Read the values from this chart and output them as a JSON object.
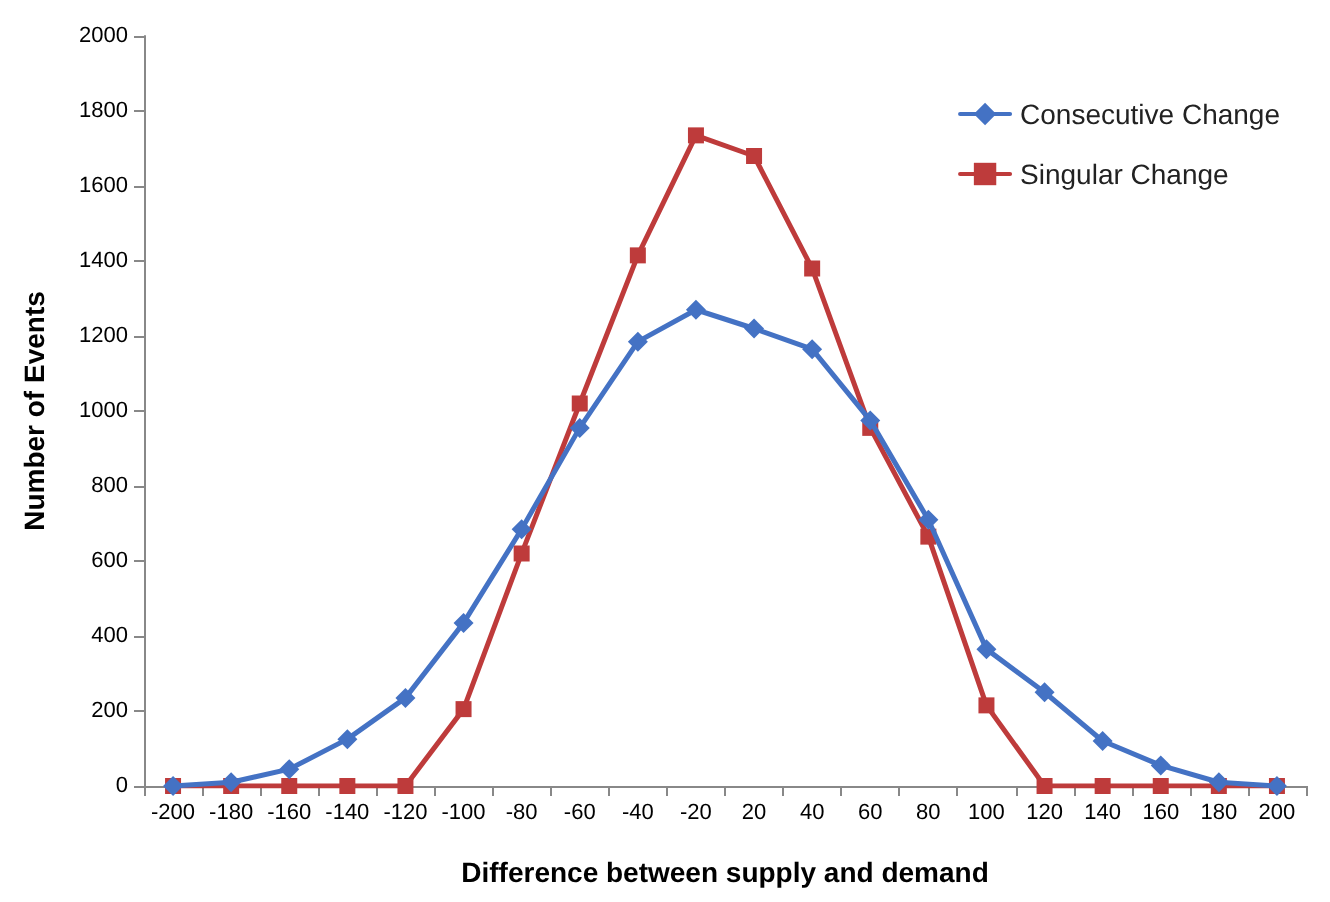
{
  "chart_data": {
    "type": "line",
    "xlabel": "Difference between supply and demand",
    "ylabel": "Number of Events",
    "categories": [
      "-200",
      "-180",
      "-160",
      "-140",
      "-120",
      "-100",
      "-80",
      "-60",
      "-40",
      "-20",
      "20",
      "40",
      "60",
      "80",
      "100",
      "120",
      "140",
      "160",
      "180",
      "200"
    ],
    "series": [
      {
        "name": "Consecutive Change",
        "color": "#4472c4",
        "marker": "diamond",
        "values": [
          0,
          10,
          45,
          125,
          235,
          435,
          685,
          955,
          1185,
          1270,
          1220,
          1165,
          975,
          710,
          365,
          250,
          120,
          55,
          10,
          0
        ]
      },
      {
        "name": "Singular Change",
        "color": "#be3b3b",
        "marker": "square",
        "values": [
          0,
          0,
          0,
          0,
          0,
          205,
          620,
          1020,
          1415,
          1735,
          1680,
          1380,
          955,
          665,
          215,
          0,
          0,
          0,
          0,
          0
        ]
      }
    ],
    "ylim": [
      0,
      2000
    ],
    "yticks": [
      0,
      200,
      400,
      600,
      800,
      1000,
      1200,
      1400,
      1600,
      1800,
      2000
    ],
    "grid": false,
    "legend": "top right",
    "line_style": "solid"
  }
}
